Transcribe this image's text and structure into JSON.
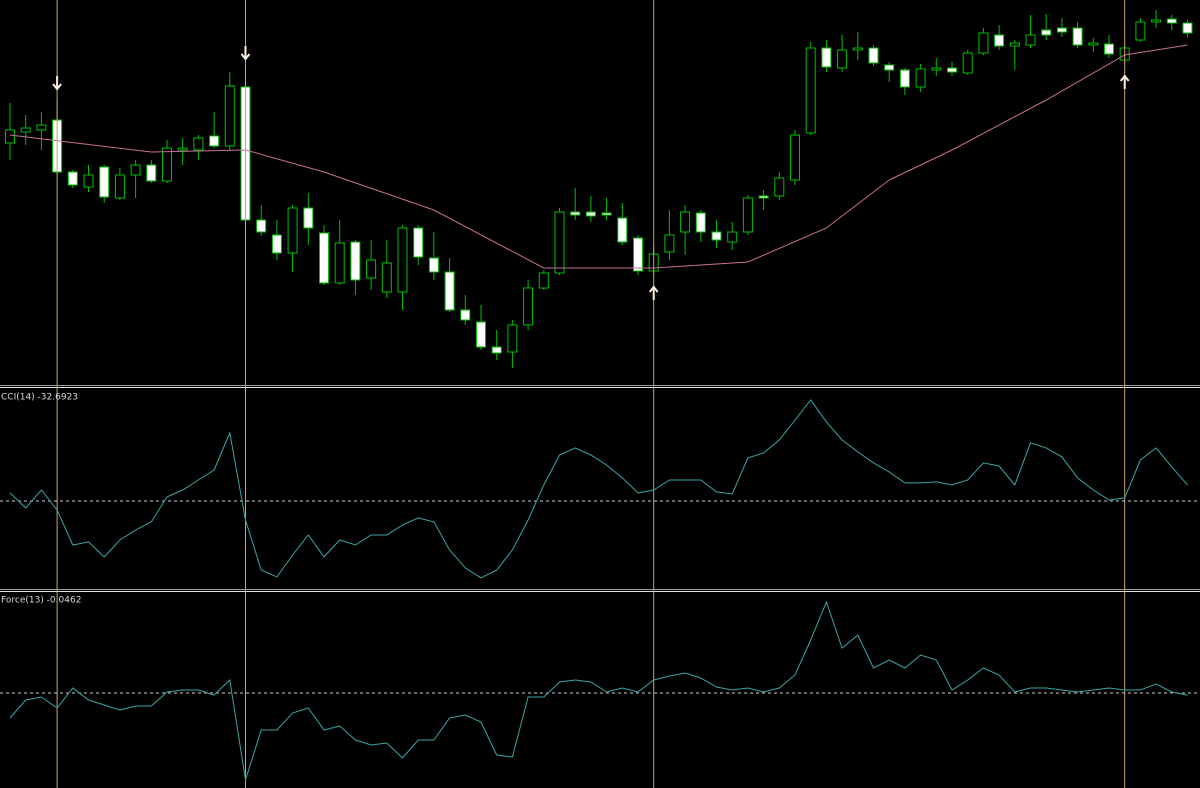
{
  "chart_data": [
    {
      "type": "candlestick",
      "open": [
        245,
        256,
        258,
        268,
        216,
        201,
        221,
        190,
        213,
        223,
        207,
        238,
        238,
        252,
        242,
        301,
        168,
        153,
        135,
        180,
        155,
        105,
        146,
        110,
        96,
        96,
        160,
        130,
        116,
        78,
        66,
        41,
        36,
        63,
        100,
        115,
        176,
        176,
        175,
        170,
        150,
        117,
        136,
        156,
        175,
        156,
        146,
        156,
        192,
        192,
        208,
        255,
        340,
        320,
        338,
        340,
        323,
        318,
        301,
        318,
        320,
        315,
        335,
        353,
        342,
        343,
        358,
        360,
        360,
        343,
        344,
        328,
        348,
        366,
        369,
        365
      ],
      "high": [
        285,
        273,
        276,
        288,
        218,
        223,
        223,
        220,
        228,
        228,
        248,
        250,
        253,
        276,
        316,
        318,
        183,
        168,
        183,
        195,
        163,
        168,
        148,
        148,
        148,
        163,
        163,
        156,
        130,
        93,
        83,
        58,
        68,
        108,
        118,
        180,
        200,
        192,
        190,
        185,
        153,
        143,
        178,
        183,
        178,
        168,
        166,
        193,
        198,
        216,
        258,
        346,
        348,
        353,
        356,
        343,
        326,
        320,
        324,
        330,
        326,
        338,
        360,
        363,
        348,
        373,
        374,
        370,
        366,
        350,
        353,
        343,
        370,
        378,
        373,
        368
      ],
      "low": [
        228,
        243,
        238,
        213,
        200,
        196,
        185,
        188,
        190,
        205,
        205,
        223,
        228,
        240,
        238,
        166,
        152,
        128,
        116,
        143,
        103,
        103,
        93,
        98,
        90,
        78,
        123,
        108,
        76,
        63,
        38,
        28,
        20,
        58,
        98,
        113,
        168,
        166,
        168,
        143,
        113,
        112,
        128,
        133,
        146,
        140,
        138,
        153,
        178,
        188,
        203,
        253,
        316,
        316,
        328,
        322,
        306,
        293,
        296,
        312,
        312,
        313,
        333,
        338,
        318,
        340,
        348,
        351,
        340,
        336,
        330,
        323,
        346,
        360,
        358,
        351
      ],
      "close": [
        258,
        260,
        263,
        216,
        203,
        213,
        191,
        213,
        223,
        207,
        240,
        240,
        250,
        242,
        302,
        168,
        156,
        135,
        180,
        160,
        105,
        145,
        108,
        128,
        125,
        160,
        131,
        116,
        78,
        68,
        41,
        35,
        63,
        100,
        115,
        176,
        173,
        172,
        173,
        146,
        117,
        134,
        153,
        176,
        156,
        148,
        156,
        190,
        190,
        210,
        253,
        340,
        321,
        338,
        340,
        325,
        318,
        301,
        319,
        320,
        316,
        335,
        355,
        342,
        345,
        353,
        353,
        356,
        343,
        345,
        334,
        340,
        366,
        368,
        365,
        355
      ],
      "ylim": [
        0,
        388
      ],
      "up_color": "#00c000",
      "down_color": "#ffffff",
      "overlays": [
        {
          "type": "line",
          "x": [
            0,
            9,
            15,
            20,
            27,
            34,
            41,
            47,
            52,
            56,
            60,
            66,
            71,
            75
          ],
          "values": [
            253,
            236,
            238,
            216,
            178,
            120,
            120,
            126,
            160,
            208,
            238,
            288,
            333,
            343
          ],
          "color": "#c86e9a"
        }
      ],
      "signals": [
        {
          "index": 3,
          "direction": "down"
        },
        {
          "index": 15,
          "direction": "down"
        },
        {
          "index": 41,
          "direction": "up"
        },
        {
          "index": 71,
          "direction": "up"
        }
      ],
      "signal_color": "#fff2dc",
      "signal_line_color": "#c8a272"
    },
    {
      "type": "line",
      "title": "CCI(14) -32.6923",
      "values": [
        -66,
        -129,
        -54,
        -138,
        -285,
        -272,
        -335,
        -264,
        -222,
        -188,
        -83,
        -54,
        -12,
        30,
        186,
        -180,
        -390,
        -419,
        -327,
        -243,
        -335,
        -264,
        -285,
        -243,
        -243,
        -201,
        -171,
        -188,
        -306,
        -381,
        -423,
        -390,
        -306,
        -180,
        -33,
        93,
        123,
        93,
        51,
        -3,
        -66,
        -54,
        -12,
        -12,
        -12,
        -62,
        -71,
        81,
        102,
        156,
        240,
        324,
        232,
        156,
        106,
        60,
        22,
        -24,
        -24,
        -20,
        -33,
        -12,
        60,
        47,
        -33,
        144,
        123,
        85,
        -3,
        -54,
        -96,
        -87,
        72,
        123,
        43,
        -32.6923
      ],
      "color": "#3aa6a6",
      "ylim": [
        -474,
        366
      ],
      "levels": [
        -100
      ],
      "level_color": "#cccccc"
    },
    {
      "type": "line",
      "title": "Force(13) -0.0462",
      "values": [
        -0.5,
        -0.14,
        -0.08,
        -0.3,
        0.1,
        -0.14,
        -0.24,
        -0.34,
        -0.26,
        -0.26,
        0.02,
        0.06,
        0.06,
        -0.04,
        0.26,
        -1.74,
        -0.74,
        -0.74,
        -0.4,
        -0.3,
        -0.74,
        -0.66,
        -0.94,
        -1.04,
        -1.0,
        -1.3,
        -0.94,
        -0.94,
        -0.5,
        -0.44,
        -0.58,
        -1.24,
        -1.28,
        -0.08,
        -0.08,
        0.22,
        0.26,
        0.22,
        0.02,
        0.1,
        0.02,
        0.26,
        0.34,
        0.4,
        0.3,
        0.12,
        0.06,
        0.1,
        0.02,
        0.1,
        0.36,
        1.06,
        1.82,
        0.9,
        1.16,
        0.5,
        0.66,
        0.5,
        0.76,
        0.66,
        0.06,
        0.26,
        0.5,
        0.36,
        0.02,
        0.1,
        0.1,
        0.06,
        0.02,
        0.06,
        0.1,
        0.06,
        0.06,
        0.18,
        0.02,
        -0.0462
      ],
      "color": "#3aa6a6",
      "ylim": [
        -1.9,
        2.0
      ],
      "levels": [
        0
      ],
      "level_color": "#cccccc"
    }
  ]
}
